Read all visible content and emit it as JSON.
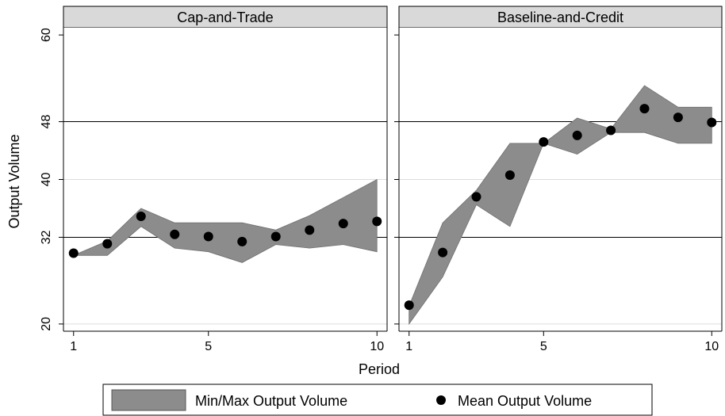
{
  "chart_data": {
    "type": "area",
    "ylabel": "Output Volume",
    "xlabel": "Period",
    "x": [
      1,
      2,
      3,
      4,
      5,
      6,
      7,
      8,
      9,
      10
    ],
    "x_ticks": [
      1,
      5,
      10
    ],
    "y_ticks": [
      20,
      32,
      40,
      48,
      60
    ],
    "y_ticks_label": [
      "20",
      "32",
      "40",
      "48",
      "60"
    ],
    "ylim": [
      19,
      61
    ],
    "xlim": [
      0.7,
      10.3
    ],
    "bold_gridlines": [
      32,
      48
    ],
    "light_gridlines": [
      20,
      40
    ],
    "legend": {
      "placement": "bottom",
      "band_label": "Min/Max Output Volume",
      "point_label": "Mean Output Volume"
    },
    "colors": {
      "band": "#8c8c8c",
      "point": "#000000",
      "header": "#d9d9d9"
    },
    "panels": [
      {
        "title": "Cap-and-Trade",
        "min": [
          29.5,
          29.5,
          33.5,
          30.5,
          30.0,
          28.5,
          31.0,
          30.5,
          31.0,
          30.0
        ],
        "max": [
          29.5,
          31.5,
          36.0,
          34.0,
          34.0,
          34.0,
          33.0,
          35.0,
          37.5,
          40.0
        ],
        "mean": [
          29.8,
          31.1,
          34.9,
          32.4,
          32.1,
          31.4,
          32.1,
          33.0,
          33.9,
          34.2
        ]
      },
      {
        "title": "Baseline-and-Credit",
        "min": [
          20.0,
          26.5,
          36.5,
          33.5,
          45.0,
          43.5,
          46.5,
          46.5,
          45.0,
          45.0
        ],
        "max": [
          22.5,
          34.0,
          38.5,
          45.0,
          45.0,
          48.5,
          47.0,
          53.0,
          50.0,
          50.0
        ],
        "mean": [
          22.6,
          29.9,
          37.6,
          40.6,
          45.2,
          46.1,
          46.8,
          49.8,
          48.6,
          47.9
        ]
      }
    ]
  }
}
